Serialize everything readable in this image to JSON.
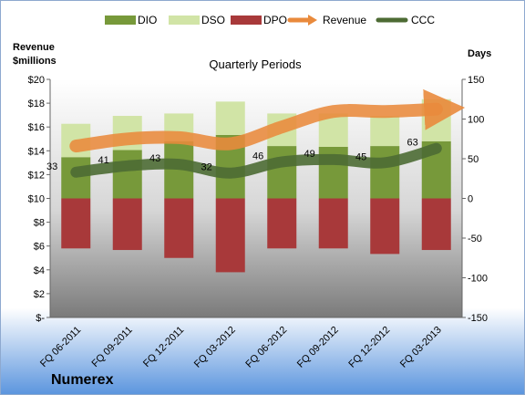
{
  "chart_data": {
    "type": "bar",
    "title": "Quarterly Periods",
    "company": "Numerex",
    "left_axis_title": [
      "Revenue",
      "$millions"
    ],
    "right_axis_title": "Days",
    "categories": [
      "FQ 06-2011",
      "FQ 09-2011",
      "FQ 12-2011",
      "FQ 03-2012",
      "FQ 06-2012",
      "FQ 09-2012",
      "FQ 12-2012",
      "FQ 03-2013"
    ],
    "left_ticks": [
      "$20",
      "$18",
      "$16",
      "$14",
      "$12",
      "$10",
      "$8",
      "$6",
      "$4",
      "$2",
      "$-"
    ],
    "right_ticks": [
      "150",
      "100",
      "50",
      "0",
      "-50",
      "-100",
      "-150"
    ],
    "ylim_left": [
      0,
      20
    ],
    "ylim_right": [
      -150,
      150
    ],
    "legend": [
      "DIO",
      "DSO",
      "DPO",
      "Revenue",
      "CCC"
    ],
    "series": [
      {
        "name": "DIO",
        "axis": "right",
        "values": [
          52,
          61,
          72,
          80,
          66,
          65,
          66,
          72
        ]
      },
      {
        "name": "DSO",
        "axis": "right",
        "values": [
          42,
          43,
          35,
          42,
          41,
          42,
          38,
          53
        ]
      },
      {
        "name": "DPO",
        "axis": "right",
        "values": [
          -63,
          -65,
          -75,
          -93,
          -63,
          -63,
          -70,
          -65
        ]
      },
      {
        "name": "Revenue",
        "axis": "left",
        "values": [
          14.4,
          15.0,
          15.1,
          14.6,
          16.0,
          17.3,
          17.3,
          17.5
        ]
      },
      {
        "name": "CCC",
        "axis": "right",
        "values": [
          33,
          41,
          43,
          32,
          46,
          49,
          45,
          63
        ]
      }
    ],
    "ccc_labels": [
      "33",
      "41",
      "43",
      "32",
      "46",
      "49",
      "45",
      "63"
    ]
  },
  "colors": {
    "dio": "#77993a",
    "dso": "#d1e4a6",
    "dpo": "#a8393a",
    "revenue": "#e98a3c",
    "ccc": "#4d6b34"
  }
}
